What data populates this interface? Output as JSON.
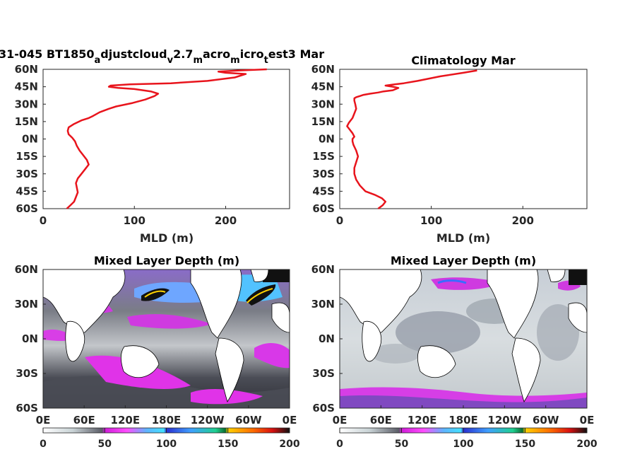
{
  "figure": {
    "top_left_title_main": "31-045 BT1850",
    "top_left_title_sub1": "a",
    "top_left_title_mid1": "djustcloud",
    "top_left_title_sub2": "v",
    "top_left_title_mid2": "2.7",
    "top_left_title_sub3": "m",
    "top_left_title_mid3": "acro",
    "top_left_title_sub4": "m",
    "top_left_title_mid4": "icro",
    "top_left_title_sub5": "t",
    "top_left_title_end": "est3 Mar",
    "top_right_title": "Climatology Mar",
    "bottom_left_title": "Mixed Layer Depth (m)",
    "bottom_right_title": "Mixed Layer Depth (m)"
  },
  "colors": {
    "profile_line": "#e8141c",
    "land": "#ffffff",
    "axes": "#262626"
  },
  "chart_data": [
    {
      "type": "line",
      "panel": "top-left",
      "xlabel": "MLD (m)",
      "ylabel": "",
      "xlim": [
        0,
        270
      ],
      "ylim": [
        -60,
        60
      ],
      "xticks": [
        0,
        100,
        200
      ],
      "xtick_labels": [
        "0",
        "100",
        "200"
      ],
      "yticks": [
        60,
        45,
        30,
        15,
        0,
        -15,
        -30,
        -45,
        -60
      ],
      "ytick_labels": [
        "60N",
        "45N",
        "30N",
        "15N",
        "0N",
        "15S",
        "30S",
        "45S",
        "60S"
      ],
      "x": [
        26,
        30,
        34,
        36,
        38,
        37,
        36,
        38,
        42,
        46,
        50,
        48,
        44,
        40,
        37,
        35,
        32,
        28,
        27,
        28,
        34,
        42,
        50,
        55,
        62,
        72,
        80,
        98,
        112,
        122,
        126,
        118,
        100,
        82,
        72,
        74,
        95,
        140,
        180,
        210,
        222,
        200,
        192,
        215,
        245
      ],
      "y": [
        -60,
        -57,
        -54,
        -50,
        -46,
        -42,
        -38,
        -34,
        -30,
        -26,
        -22,
        -18,
        -14,
        -10,
        -6,
        -2,
        1,
        4,
        7,
        10,
        13,
        16,
        18,
        20,
        23,
        26,
        28,
        31,
        34,
        37,
        39,
        41,
        43,
        44,
        45,
        46,
        47,
        48,
        50,
        53,
        56,
        57,
        58,
        59,
        60
      ]
    },
    {
      "type": "line",
      "panel": "top-right",
      "xlabel": "MLD (m)",
      "ylabel": "",
      "xlim": [
        0,
        270
      ],
      "ylim": [
        -60,
        60
      ],
      "xticks": [
        0,
        100,
        200
      ],
      "xtick_labels": [
        "0",
        "100",
        "200"
      ],
      "yticks": [
        60,
        45,
        30,
        15,
        0,
        -15,
        -30,
        -45,
        -60
      ],
      "ytick_labels": [
        "60N",
        "45N",
        "30N",
        "15N",
        "0N",
        "15S",
        "30S",
        "45S",
        "60S"
      ],
      "x": [
        42,
        47,
        50,
        46,
        38,
        28,
        22,
        18,
        16,
        16,
        18,
        20,
        18,
        15,
        14,
        14,
        16,
        14,
        11,
        8,
        10,
        14,
        16,
        18,
        17,
        16,
        16,
        18,
        22,
        26,
        33,
        42,
        48,
        58,
        64,
        58,
        50,
        60,
        70,
        85,
        110,
        135,
        150
      ],
      "y": [
        -60,
        -57,
        -54,
        -51,
        -48,
        -45,
        -40,
        -35,
        -30,
        -25,
        -20,
        -15,
        -10,
        -5,
        -2,
        0,
        2,
        5,
        8,
        11,
        14,
        18,
        22,
        26,
        30,
        33,
        35,
        36,
        37,
        38,
        39,
        40,
        41,
        42,
        44,
        45,
        46,
        47,
        48,
        50,
        54,
        57,
        59
      ]
    },
    {
      "type": "heatmap",
      "panel": "bottom-left",
      "title": "Mixed Layer Depth (m)",
      "xtick_labels": [
        "0E",
        "60E",
        "120E",
        "180E",
        "120W",
        "60W",
        "0E"
      ],
      "ytick_labels": [
        "60N",
        "30N",
        "0N",
        "30S",
        "60S"
      ],
      "colorbar_ticks": [
        0,
        50,
        100,
        150,
        200
      ],
      "clim": [
        0,
        200
      ]
    },
    {
      "type": "heatmap",
      "panel": "bottom-right",
      "title": "Mixed Layer Depth (m)",
      "xtick_labels": [
        "0E",
        "60E",
        "120E",
        "180E",
        "120W",
        "60W",
        "0E"
      ],
      "ytick_labels": [
        "60N",
        "30N",
        "0N",
        "30S",
        "60S"
      ],
      "colorbar_ticks": [
        0,
        50,
        100,
        150,
        200
      ],
      "clim": [
        0,
        200
      ]
    }
  ]
}
